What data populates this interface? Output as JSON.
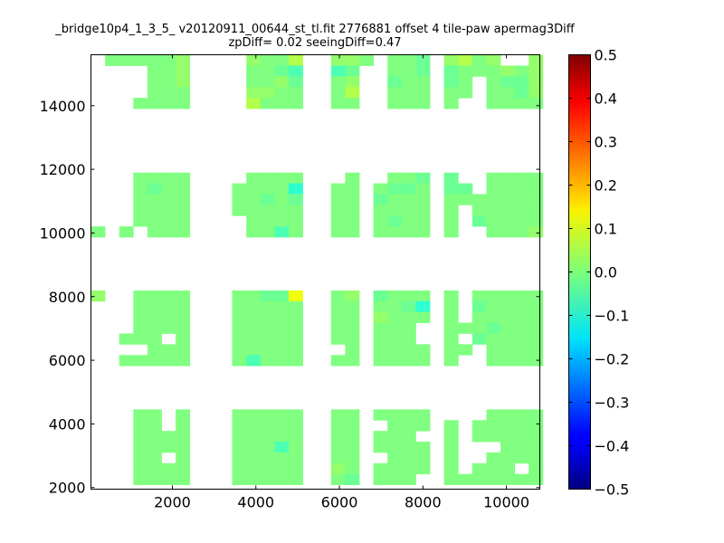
{
  "chart_data": {
    "type": "heatmap",
    "title": "_bridge10p4_1_3_5_ v20120911_00644_st_tl.fit 2776881 offset 4 tile-paw apermag3Diff",
    "subtitle": "zpDiff= 0.02 seeingDiff=0.47",
    "xlabel": "",
    "ylabel": "",
    "xlim": [
      50,
      10800
    ],
    "ylim": [
      1950,
      15600
    ],
    "x_ticks": [
      2000,
      4000,
      6000,
      8000,
      10000
    ],
    "y_ticks": [
      2000,
      4000,
      6000,
      8000,
      10000,
      12000,
      14000
    ],
    "colorbar": {
      "colormap": "jet",
      "range": [
        -0.5,
        0.5
      ],
      "ticks": [
        "0.5",
        "0.4",
        "0.3",
        "0.2",
        "0.1",
        "0.0",
        "−0.1",
        "−0.2",
        "−0.3",
        "−0.4",
        "−0.5"
      ]
    },
    "cell_size": 338,
    "column_x_start": [
      50,
      388,
      726,
      1064,
      1402,
      1740,
      2078,
      2756,
      3094,
      3432,
      3770,
      4108,
      4446,
      4784,
      5800,
      6138,
      6476,
      6814,
      7152,
      7490,
      7828,
      8506,
      8844,
      9182,
      9520,
      9858,
      10196,
      10534
    ],
    "row_y_start": [
      15260,
      14922,
      14584,
      14246,
      13908,
      11560,
      11222,
      10884,
      10546,
      10208,
      9870,
      7856,
      7518,
      7180,
      6842,
      6504,
      6166,
      5828,
      4118,
      3780,
      3442,
      3104,
      2766,
      2428,
      2090
    ],
    "value_codes": {
      "0": null,
      "1": 0.0,
      "2": -0.02,
      "3": 0.02,
      "4": 0.05,
      "5": -0.05,
      "6": 0.11,
      "7": 0.15,
      "8": -0.08,
      "9": 0.08
    },
    "grid_codes": [
      "0111113000311433101123413003",
      "0000113000112552001122111313",
      "0000113000113213002112101223",
      "0000111000331114001111101123",
      "0001111000411111001111001111",
      "0001111000111101001122001111",
      "0001211001111811012212201111",
      "0001111001121211021111111111",
      "0001111001111111011111011111",
      "0001111000111111012111021111",
      "1010111000115111011111001113",
      "3001111001122613021111011111",
      "0001111001111111011281021111",
      "0001111001111111031111011111",
      "0001111001111111011101112111",
      "0011101001111111011101021111",
      "0000111001111101011111101111",
      "0011111001511111011111001111",
      "0001101001111111011110001111",
      "0001101001111111001111011111",
      "0001111001111111011101011111",
      "0001111001115111011111000111",
      "0001101001111111001111001111",
      "0001111001111131011111011101",
      "0001111001111112011101111111"
    ]
  }
}
